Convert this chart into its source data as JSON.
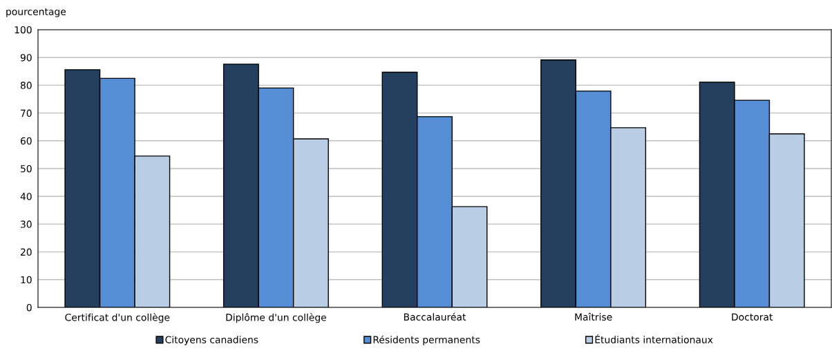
{
  "chart_data": {
    "type": "bar",
    "ylabel": "pourcentage",
    "categories": [
      "Certificat d'un collège",
      "Diplôme d'un collège",
      "Baccalauréat",
      "Maîtrise",
      "Doctorat"
    ],
    "series": [
      {
        "name": "Citoyens canadiens",
        "color": "#253f5f",
        "values": [
          85.6,
          87.6,
          84.7,
          89.1,
          81.1
        ]
      },
      {
        "name": "Résidents permanents",
        "color": "#558ed5",
        "values": [
          82.5,
          79.0,
          68.7,
          77.9,
          74.6
        ]
      },
      {
        "name": "Étudiants internationaux",
        "color": "#b9cde5",
        "values": [
          54.5,
          60.7,
          36.3,
          64.7,
          62.5
        ]
      }
    ],
    "ylim": [
      0,
      100
    ],
    "yticks": [
      0,
      10,
      20,
      30,
      40,
      50,
      60,
      70,
      80,
      90,
      100
    ],
    "grid": "y",
    "legend": "bottom"
  }
}
